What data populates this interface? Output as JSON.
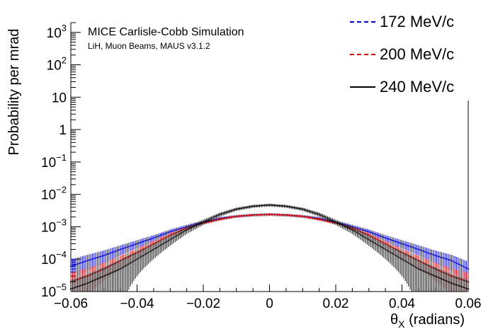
{
  "chart_data": {
    "type": "line",
    "title": "",
    "annotation_title": "MICE Carlisle-Cobb Simulation",
    "annotation_subtitle": "LiH, Muon Beams, MAUS v3.1.2",
    "xlabel": "θX (radians)",
    "ylabel": "Probability per mrad",
    "xlim": [
      -0.06,
      0.06
    ],
    "ylim": [
      1e-05,
      2000
    ],
    "y_scale": "log",
    "grid": false,
    "legend_position": "top-right",
    "x_ticks": [
      "−0.06",
      "−0.04",
      "−0.02",
      "0",
      "0.02",
      "0.04",
      "0.06"
    ],
    "y_ticks": [
      "10−5",
      "10−4",
      "10−3",
      "10−2",
      "10−1",
      "1",
      "10",
      "102",
      "103"
    ],
    "series": [
      {
        "name": "172 MeV/c",
        "color": "#0000cc",
        "style": "dashed",
        "x": [
          -0.06,
          -0.055,
          -0.05,
          -0.045,
          -0.04,
          -0.035,
          -0.03,
          -0.025,
          -0.02,
          -0.015,
          -0.01,
          -0.005,
          0,
          0.005,
          0.01,
          0.015,
          0.02,
          0.025,
          0.03,
          0.035,
          0.04,
          0.045,
          0.05,
          0.055,
          0.06
        ],
        "y": [
          6e-05,
          9e-05,
          0.00013,
          0.0002,
          0.0003,
          0.00045,
          0.0007,
          0.001,
          0.0014,
          0.0018,
          0.0021,
          0.0023,
          0.0024,
          0.0023,
          0.0021,
          0.0018,
          0.0014,
          0.001,
          0.0007,
          0.00045,
          0.0003,
          0.0002,
          0.00013,
          9e-05,
          5e-05
        ]
      },
      {
        "name": "200 MeV/c",
        "color": "#cc0000",
        "style": "dash-dot",
        "x": [
          -0.06,
          -0.055,
          -0.05,
          -0.045,
          -0.04,
          -0.035,
          -0.03,
          -0.025,
          -0.02,
          -0.015,
          -0.01,
          -0.005,
          0,
          0.005,
          0.01,
          0.015,
          0.02,
          0.025,
          0.03,
          0.035,
          0.04,
          0.045,
          0.05,
          0.055,
          0.06
        ],
        "y": [
          2e-05,
          3e-05,
          5e-05,
          9e-05,
          0.00016,
          0.0003,
          0.00055,
          0.0009,
          0.0013,
          0.0017,
          0.0021,
          0.0023,
          0.0024,
          0.0023,
          0.0021,
          0.0017,
          0.0013,
          0.0009,
          0.00055,
          0.0003,
          0.00016,
          9e-05,
          5e-05,
          3e-05,
          2e-05
        ]
      },
      {
        "name": "240 MeV/c",
        "color": "#000000",
        "style": "solid",
        "x": [
          -0.06,
          -0.055,
          -0.05,
          -0.045,
          -0.04,
          -0.035,
          -0.03,
          -0.025,
          -0.02,
          -0.015,
          -0.01,
          -0.005,
          0,
          0.005,
          0.01,
          0.015,
          0.02,
          0.025,
          0.03,
          0.035,
          0.04,
          0.045,
          0.05,
          0.055,
          0.06
        ],
        "y": [
          1.2e-05,
          1.8e-05,
          3e-05,
          5e-05,
          0.0001,
          0.0002,
          0.0004,
          0.0008,
          0.0014,
          0.0024,
          0.0035,
          0.0043,
          0.0047,
          0.0043,
          0.0035,
          0.0024,
          0.0014,
          0.0008,
          0.0004,
          0.0002,
          0.0001,
          5e-05,
          3e-05,
          1.8e-05,
          1.2e-05
        ]
      }
    ]
  }
}
